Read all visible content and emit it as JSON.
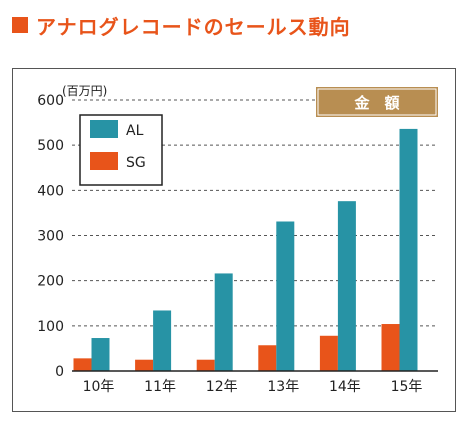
{
  "title": "アナログレコードのセールス動向",
  "colors": {
    "title": "#e8541a",
    "al": "#2793a5",
    "sg": "#e8541a",
    "badge": "#b88e52",
    "grid": "#555555"
  },
  "chart_data": {
    "type": "bar",
    "unit_label": "(百万円)",
    "badge": "金　額",
    "categories": [
      "10年",
      "11年",
      "12年",
      "13年",
      "14年",
      "15年"
    ],
    "series": [
      {
        "name": "AL",
        "color": "#2793a5",
        "values": [
          73,
          134,
          216,
          331,
          376,
          536
        ]
      },
      {
        "name": "SG",
        "color": "#e8541a",
        "values": [
          28,
          25,
          25,
          57,
          78,
          104
        ]
      }
    ],
    "ylim": [
      0,
      600
    ],
    "yticks": [
      0,
      100,
      200,
      300,
      400,
      500,
      600
    ],
    "grid": true,
    "legend_position": "top-left"
  }
}
